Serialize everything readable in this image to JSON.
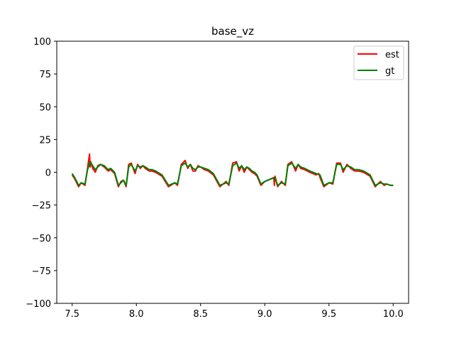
{
  "chart_data": {
    "type": "line",
    "title": "base_vz",
    "xlabel": "",
    "ylabel": "",
    "xlim": [
      7.38,
      10.12
    ],
    "ylim": [
      -100,
      100
    ],
    "x_ticks": [
      7.5,
      8.0,
      8.5,
      9.0,
      9.5,
      10.0
    ],
    "x_tick_labels": [
      "7.5",
      "8.0",
      "8.5",
      "9.0",
      "9.5",
      "10.0"
    ],
    "y_ticks": [
      100,
      75,
      50,
      25,
      0,
      -25,
      -50,
      -75,
      -100
    ],
    "y_tick_labels": [
      "100",
      "75",
      "50",
      "25",
      "0",
      "−25",
      "−50",
      "−75",
      "−100"
    ],
    "grid": false,
    "legend_position": "top-right",
    "series": [
      {
        "name": "est",
        "color": "#ff0000",
        "x": [
          7.5,
          7.52,
          7.55,
          7.57,
          7.6,
          7.62,
          7.635,
          7.64,
          7.645,
          7.66,
          7.68,
          7.7,
          7.72,
          7.75,
          7.78,
          7.8,
          7.83,
          7.86,
          7.88,
          7.9,
          7.92,
          7.94,
          7.96,
          7.99,
          8.01,
          8.03,
          8.05,
          8.07,
          8.1,
          8.12,
          8.15,
          8.2,
          8.25,
          8.3,
          8.32,
          8.35,
          8.38,
          8.4,
          8.42,
          8.44,
          8.46,
          8.48,
          8.5,
          8.53,
          8.56,
          8.6,
          8.65,
          8.7,
          8.72,
          8.75,
          8.78,
          8.8,
          8.82,
          8.84,
          8.86,
          8.88,
          8.9,
          8.92,
          8.94,
          8.97,
          9.0,
          9.05,
          9.07,
          9.075,
          9.08,
          9.1,
          9.13,
          9.16,
          9.18,
          9.21,
          9.24,
          9.26,
          9.28,
          9.31,
          9.35,
          9.4,
          9.42,
          9.425,
          9.43,
          9.46,
          9.5,
          9.53,
          9.56,
          9.59,
          9.61,
          9.64,
          9.67,
          9.7,
          9.73,
          9.77,
          9.82,
          9.86,
          9.9,
          9.93,
          9.95,
          9.98,
          10.0
        ],
        "y": [
          -2,
          -5,
          -11,
          -8,
          -10,
          3,
          14,
          4,
          8,
          3,
          0,
          5,
          6,
          4,
          1,
          2,
          -1,
          -11,
          -7,
          -6,
          -11,
          6,
          7,
          -1,
          6,
          3,
          5,
          3,
          1,
          1,
          0,
          -3,
          -11,
          -8,
          -10,
          6,
          9,
          3,
          6,
          1,
          1,
          5,
          4,
          2,
          1,
          -2,
          -11,
          -7,
          -10,
          7,
          8,
          1,
          5,
          0,
          4,
          2,
          0,
          -1,
          -3,
          -10,
          -7,
          -5,
          -4,
          -10,
          -3,
          -11,
          -7,
          -10,
          6,
          8,
          1,
          6,
          3,
          2,
          0,
          -2,
          -1,
          -2,
          -4,
          -11,
          -8,
          -9,
          7,
          7,
          0,
          6,
          3,
          1,
          1,
          0,
          -3,
          -11,
          -7,
          -10,
          -9,
          -10,
          -10
        ]
      },
      {
        "name": "gt",
        "color": "#008000",
        "x": [
          7.5,
          7.52,
          7.55,
          7.57,
          7.6,
          7.62,
          7.64,
          7.66,
          7.68,
          7.7,
          7.72,
          7.75,
          7.78,
          7.8,
          7.83,
          7.86,
          7.88,
          7.9,
          7.92,
          7.94,
          7.96,
          7.99,
          8.01,
          8.03,
          8.05,
          8.07,
          8.1,
          8.12,
          8.15,
          8.2,
          8.25,
          8.3,
          8.32,
          8.35,
          8.38,
          8.4,
          8.42,
          8.44,
          8.46,
          8.48,
          8.5,
          8.53,
          8.56,
          8.6,
          8.65,
          8.7,
          8.72,
          8.75,
          8.78,
          8.8,
          8.82,
          8.84,
          8.86,
          8.88,
          8.9,
          8.92,
          8.94,
          8.97,
          9.0,
          9.05,
          9.08,
          9.1,
          9.13,
          9.16,
          9.18,
          9.21,
          9.24,
          9.26,
          9.28,
          9.31,
          9.35,
          9.4,
          9.43,
          9.46,
          9.5,
          9.53,
          9.56,
          9.59,
          9.61,
          9.64,
          9.67,
          9.7,
          9.73,
          9.77,
          9.82,
          9.86,
          9.9,
          9.93,
          9.95,
          9.98,
          10.0
        ],
        "y": [
          -1,
          -4,
          -10,
          -8,
          -9,
          2,
          8,
          5,
          2,
          4,
          6,
          5,
          2,
          3,
          0,
          -10,
          -8,
          -6,
          -10,
          4,
          6,
          1,
          5,
          4,
          5,
          4,
          2,
          2,
          1,
          -2,
          -10,
          -8,
          -9,
          5,
          7,
          4,
          6,
          3,
          2,
          4,
          4,
          3,
          2,
          -1,
          -10,
          -8,
          -9,
          5,
          7,
          3,
          5,
          2,
          4,
          3,
          1,
          0,
          -2,
          -9,
          -7,
          -5,
          -4,
          -10,
          -8,
          -9,
          5,
          7,
          3,
          6,
          4,
          3,
          1,
          -1,
          -2,
          -10,
          -8,
          -8,
          6,
          6,
          2,
          5,
          4,
          2,
          2,
          1,
          -2,
          -10,
          -8,
          -9,
          -9,
          -10,
          -10
        ]
      }
    ]
  }
}
